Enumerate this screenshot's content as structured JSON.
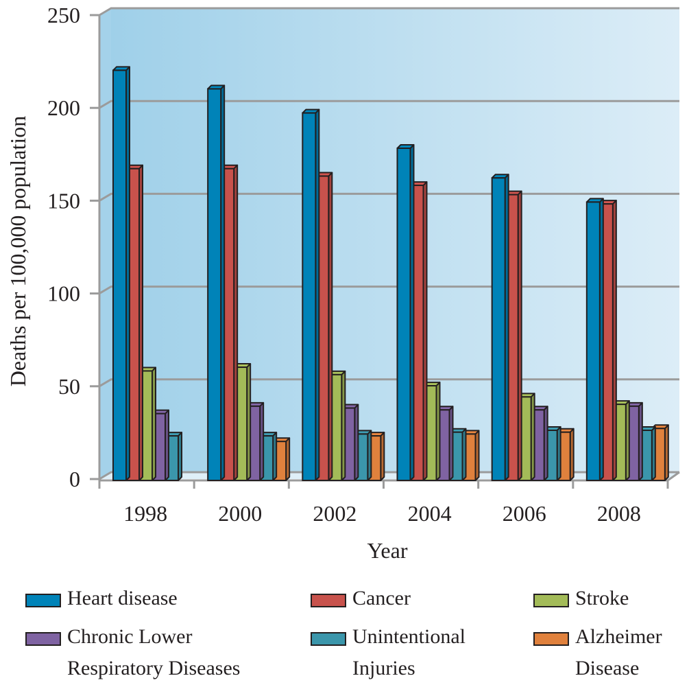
{
  "chart_data": {
    "type": "bar",
    "style": "3d-clustered-column",
    "title": "",
    "xlabel": "Year",
    "ylabel": "Deaths per 100,000 population",
    "categories": [
      "1998",
      "2000",
      "2002",
      "2004",
      "2006",
      "2008"
    ],
    "ylim": [
      0,
      250
    ],
    "yticks": [
      "0",
      "50",
      "100",
      "150",
      "200",
      "250"
    ],
    "grid": true,
    "legend_position": "bottom",
    "series": [
      {
        "name": "Heart disease",
        "color": "#0083b8",
        "values": [
          221,
          211,
          198,
          179,
          163,
          150
        ]
      },
      {
        "name": "Cancer",
        "color": "#c8524c",
        "values": [
          168,
          168,
          164,
          159,
          154,
          149
        ]
      },
      {
        "name": "Stroke",
        "color": "#a3bb58",
        "values": [
          59,
          61,
          57,
          51,
          45,
          41
        ]
      },
      {
        "name": "Chronic Lower\nRespiratory Diseases",
        "color": "#7f63a2",
        "values": [
          36,
          40,
          39,
          38,
          38,
          40
        ]
      },
      {
        "name": "Unintentional\nInjuries",
        "color": "#3b96ab",
        "values": [
          24,
          24,
          25,
          26,
          27,
          27
        ]
      },
      {
        "name": "Alzheimer\nDisease",
        "color": "#e0813d",
        "values": [
          null,
          21,
          24,
          25,
          26,
          28
        ]
      }
    ],
    "background": {
      "gradient_left": "#9fd0e9",
      "gradient_right": "#dcedf7",
      "gridline": "#9b9b9b"
    }
  }
}
